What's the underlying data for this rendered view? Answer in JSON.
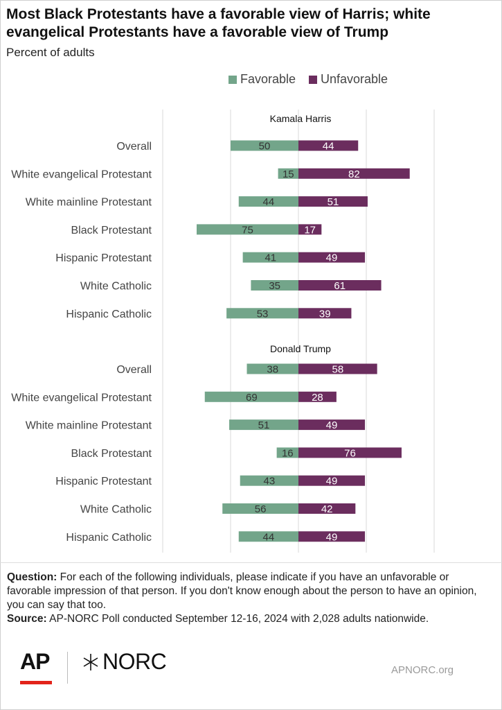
{
  "title": "Most Black Protestants have a favorable view of Harris;  white\nevangelical Protestants have a favorable view of Trump",
  "subtitle": "Percent of adults",
  "colors": {
    "favorable": "#73a58a",
    "unfavorable": "#6b2d5e",
    "grid": "#d9d9d9",
    "bar_text_dark": "#333333",
    "bar_text_light": "#ffffff"
  },
  "chart_data": {
    "type": "bar",
    "orientation": "horizontal-diverging",
    "legend": [
      {
        "name": "Favorable",
        "color": "#73a58a"
      },
      {
        "name": "Unfavorable",
        "color": "#6b2d5e"
      }
    ],
    "legend_position": "top-right",
    "grid": true,
    "xlim": [
      -100,
      100
    ],
    "panels": [
      {
        "title": "Kamala Harris",
        "categories": [
          "Overall",
          "White evangelical Protestant",
          "White mainline Protestant",
          "Black Protestant ",
          "Hispanic Protestant",
          "White Catholic",
          "Hispanic Catholic"
        ],
        "series": [
          {
            "name": "Favorable",
            "values": [
              50,
              15,
              44,
              75,
              41,
              35,
              53
            ]
          },
          {
            "name": "Unfavorable",
            "values": [
              44,
              82,
              51,
              17,
              49,
              61,
              39
            ]
          }
        ]
      },
      {
        "title": "Donald Trump",
        "categories": [
          "Overall",
          "White evangelical Protestant",
          "White mainline Protestant",
          "Black Protestant ",
          "Hispanic  Protestant",
          "White Catholic",
          "Hispanic Catholic"
        ],
        "series": [
          {
            "name": "Favorable",
            "values": [
              38,
              69,
              51,
              16,
              43,
              56,
              44
            ]
          },
          {
            "name": "Unfavorable",
            "values": [
              58,
              28,
              49,
              76,
              49,
              42,
              49
            ]
          }
        ]
      }
    ]
  },
  "notes": {
    "question_label": "Question:",
    "question_text": " For each of the following individuals, please indicate if you have an unfavorable or favorable impression of that person. If you don't know enough about the person to have an opinion, you can say that too.",
    "source_label": "Source:",
    "source_text": " AP-NORC Poll conducted September 12-16, 2024 with 2,028 adults nationwide."
  },
  "footer": {
    "ap_logo": "AP",
    "norc_logo": "NORC",
    "norc_mark": "✕",
    "site": "APNORC.org"
  }
}
